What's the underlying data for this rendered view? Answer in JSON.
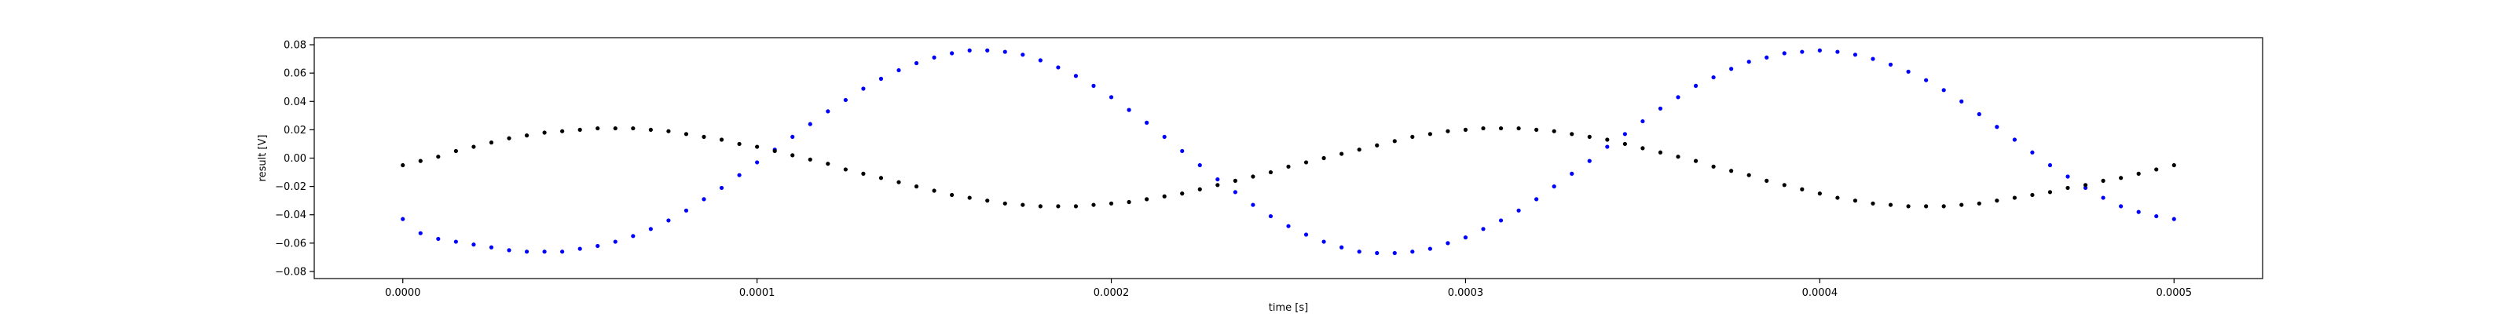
{
  "chart_data": {
    "type": "scatter",
    "title": "",
    "xlabel": "time [s]",
    "ylabel": "result [V]",
    "xlim": [
      -2.5e-05,
      0.000525
    ],
    "ylim": [
      -0.085,
      0.085
    ],
    "grid": false,
    "legend": "none",
    "xticks": [
      0,
      0.0001,
      0.0002,
      0.0003,
      0.0004,
      0.0005
    ],
    "xtick_labels": [
      "0.0000",
      "0.0001",
      "0.0002",
      "0.0003",
      "0.0004",
      "0.0005"
    ],
    "yticks": [
      -0.08,
      -0.06,
      -0.04,
      -0.02,
      0.0,
      0.02,
      0.04,
      0.06,
      0.08
    ],
    "ytick_labels": [
      "−0.08",
      "−0.06",
      "−0.04",
      "−0.02",
      "0.00",
      "0.02",
      "0.04",
      "0.06",
      "0.08"
    ],
    "series": [
      {
        "color": "#0000ff",
        "marker": "dot",
        "points": [
          [
            0.0,
            -0.043
          ],
          [
            5e-06,
            -0.053
          ],
          [
            1e-05,
            -0.057
          ],
          [
            1.5e-05,
            -0.059
          ],
          [
            2e-05,
            -0.061
          ],
          [
            2.5e-05,
            -0.063
          ],
          [
            3e-05,
            -0.065
          ],
          [
            3.5e-05,
            -0.066
          ],
          [
            4e-05,
            -0.066
          ],
          [
            4.5e-05,
            -0.066
          ],
          [
            5e-05,
            -0.064
          ],
          [
            5.5e-05,
            -0.062
          ],
          [
            6e-05,
            -0.059
          ],
          [
            6.5e-05,
            -0.055
          ],
          [
            7e-05,
            -0.05
          ],
          [
            7.5e-05,
            -0.044
          ],
          [
            8e-05,
            -0.037
          ],
          [
            8.5e-05,
            -0.029
          ],
          [
            9e-05,
            -0.021
          ],
          [
            9.5e-05,
            -0.012
          ],
          [
            0.0001,
            -0.003
          ],
          [
            0.000105,
            0.006
          ],
          [
            0.00011,
            0.015
          ],
          [
            0.000115,
            0.024
          ],
          [
            0.00012,
            0.033
          ],
          [
            0.000125,
            0.041
          ],
          [
            0.00013,
            0.049
          ],
          [
            0.000135,
            0.056
          ],
          [
            0.00014,
            0.062
          ],
          [
            0.000145,
            0.067
          ],
          [
            0.00015,
            0.071
          ],
          [
            0.000155,
            0.074
          ],
          [
            0.00016,
            0.076
          ],
          [
            0.000165,
            0.076
          ],
          [
            0.00017,
            0.075
          ],
          [
            0.000175,
            0.073
          ],
          [
            0.00018,
            0.069
          ],
          [
            0.000185,
            0.064
          ],
          [
            0.00019,
            0.058
          ],
          [
            0.000195,
            0.051
          ],
          [
            0.0002,
            0.043
          ],
          [
            0.000205,
            0.034
          ],
          [
            0.00021,
            0.025
          ],
          [
            0.000215,
            0.015
          ],
          [
            0.00022,
            0.005
          ],
          [
            0.000225,
            -0.005
          ],
          [
            0.00023,
            -0.015
          ],
          [
            0.000235,
            -0.024
          ],
          [
            0.00024,
            -0.033
          ],
          [
            0.000245,
            -0.041
          ],
          [
            0.00025,
            -0.048
          ],
          [
            0.000255,
            -0.054
          ],
          [
            0.00026,
            -0.059
          ],
          [
            0.000265,
            -0.063
          ],
          [
            0.00027,
            -0.066
          ],
          [
            0.000275,
            -0.067
          ],
          [
            0.00028,
            -0.067
          ],
          [
            0.000285,
            -0.066
          ],
          [
            0.00029,
            -0.064
          ],
          [
            0.000295,
            -0.06
          ],
          [
            0.0003,
            -0.056
          ],
          [
            0.000305,
            -0.05
          ],
          [
            0.00031,
            -0.044
          ],
          [
            0.000315,
            -0.037
          ],
          [
            0.00032,
            -0.029
          ],
          [
            0.000325,
            -0.02
          ],
          [
            0.00033,
            -0.011
          ],
          [
            0.000335,
            -0.002
          ],
          [
            0.00034,
            0.008
          ],
          [
            0.000345,
            0.017
          ],
          [
            0.00035,
            0.026
          ],
          [
            0.000355,
            0.035
          ],
          [
            0.00036,
            0.043
          ],
          [
            0.000365,
            0.051
          ],
          [
            0.00037,
            0.057
          ],
          [
            0.000375,
            0.063
          ],
          [
            0.00038,
            0.068
          ],
          [
            0.000385,
            0.071
          ],
          [
            0.00039,
            0.074
          ],
          [
            0.000395,
            0.075
          ],
          [
            0.0004,
            0.076
          ],
          [
            0.000405,
            0.075
          ],
          [
            0.00041,
            0.073
          ],
          [
            0.000415,
            0.07
          ],
          [
            0.00042,
            0.066
          ],
          [
            0.000425,
            0.061
          ],
          [
            0.00043,
            0.055
          ],
          [
            0.000435,
            0.048
          ],
          [
            0.00044,
            0.04
          ],
          [
            0.000445,
            0.031
          ],
          [
            0.00045,
            0.022
          ],
          [
            0.000455,
            0.013
          ],
          [
            0.00046,
            0.004
          ],
          [
            0.000465,
            -0.005
          ],
          [
            0.00047,
            -0.013
          ],
          [
            0.000475,
            -0.021
          ],
          [
            0.00048,
            -0.028
          ],
          [
            0.000485,
            -0.034
          ],
          [
            0.00049,
            -0.038
          ],
          [
            0.000495,
            -0.041
          ],
          [
            0.0005,
            -0.043
          ]
        ]
      },
      {
        "color": "#000000",
        "marker": "dot",
        "points": [
          [
            0.0,
            -0.005
          ],
          [
            5e-06,
            -0.002
          ],
          [
            1e-05,
            0.001
          ],
          [
            1.5e-05,
            0.005
          ],
          [
            2e-05,
            0.008
          ],
          [
            2.5e-05,
            0.011
          ],
          [
            3e-05,
            0.014
          ],
          [
            3.5e-05,
            0.016
          ],
          [
            4e-05,
            0.018
          ],
          [
            4.5e-05,
            0.019
          ],
          [
            5e-05,
            0.02
          ],
          [
            5.5e-05,
            0.021
          ],
          [
            6e-05,
            0.021
          ],
          [
            6.5e-05,
            0.021
          ],
          [
            7e-05,
            0.02
          ],
          [
            7.5e-05,
            0.019
          ],
          [
            8e-05,
            0.017
          ],
          [
            8.5e-05,
            0.015
          ],
          [
            9e-05,
            0.013
          ],
          [
            9.5e-05,
            0.01
          ],
          [
            0.0001,
            0.008
          ],
          [
            0.000105,
            0.005
          ],
          [
            0.00011,
            0.002
          ],
          [
            0.000115,
            -0.001
          ],
          [
            0.00012,
            -0.004
          ],
          [
            0.000125,
            -0.008
          ],
          [
            0.00013,
            -0.011
          ],
          [
            0.000135,
            -0.014
          ],
          [
            0.00014,
            -0.017
          ],
          [
            0.000145,
            -0.02
          ],
          [
            0.00015,
            -0.023
          ],
          [
            0.000155,
            -0.026
          ],
          [
            0.00016,
            -0.028
          ],
          [
            0.000165,
            -0.03
          ],
          [
            0.00017,
            -0.032
          ],
          [
            0.000175,
            -0.033
          ],
          [
            0.00018,
            -0.034
          ],
          [
            0.000185,
            -0.034
          ],
          [
            0.00019,
            -0.034
          ],
          [
            0.000195,
            -0.033
          ],
          [
            0.0002,
            -0.032
          ],
          [
            0.000205,
            -0.031
          ],
          [
            0.00021,
            -0.029
          ],
          [
            0.000215,
            -0.027
          ],
          [
            0.00022,
            -0.025
          ],
          [
            0.000225,
            -0.022
          ],
          [
            0.00023,
            -0.019
          ],
          [
            0.000235,
            -0.016
          ],
          [
            0.00024,
            -0.013
          ],
          [
            0.000245,
            -0.01
          ],
          [
            0.00025,
            -0.006
          ],
          [
            0.000255,
            -0.003
          ],
          [
            0.00026,
            0.0
          ],
          [
            0.000265,
            0.003
          ],
          [
            0.00027,
            0.006
          ],
          [
            0.000275,
            0.009
          ],
          [
            0.00028,
            0.012
          ],
          [
            0.000285,
            0.015
          ],
          [
            0.00029,
            0.017
          ],
          [
            0.000295,
            0.019
          ],
          [
            0.0003,
            0.02
          ],
          [
            0.000305,
            0.021
          ],
          [
            0.00031,
            0.021
          ],
          [
            0.000315,
            0.021
          ],
          [
            0.00032,
            0.02
          ],
          [
            0.000325,
            0.019
          ],
          [
            0.00033,
            0.017
          ],
          [
            0.000335,
            0.015
          ],
          [
            0.00034,
            0.013
          ],
          [
            0.000345,
            0.01
          ],
          [
            0.00035,
            0.007
          ],
          [
            0.000355,
            0.004
          ],
          [
            0.00036,
            0.001
          ],
          [
            0.000365,
            -0.002
          ],
          [
            0.00037,
            -0.006
          ],
          [
            0.000375,
            -0.009
          ],
          [
            0.00038,
            -0.012
          ],
          [
            0.000385,
            -0.016
          ],
          [
            0.00039,
            -0.019
          ],
          [
            0.000395,
            -0.022
          ],
          [
            0.0004,
            -0.025
          ],
          [
            0.000405,
            -0.028
          ],
          [
            0.00041,
            -0.03
          ],
          [
            0.000415,
            -0.032
          ],
          [
            0.00042,
            -0.033
          ],
          [
            0.000425,
            -0.034
          ],
          [
            0.00043,
            -0.034
          ],
          [
            0.000435,
            -0.034
          ],
          [
            0.00044,
            -0.033
          ],
          [
            0.000445,
            -0.032
          ],
          [
            0.00045,
            -0.03
          ],
          [
            0.000455,
            -0.028
          ],
          [
            0.00046,
            -0.026
          ],
          [
            0.000465,
            -0.024
          ],
          [
            0.00047,
            -0.021
          ],
          [
            0.000475,
            -0.019
          ],
          [
            0.00048,
            -0.016
          ],
          [
            0.000485,
            -0.014
          ],
          [
            0.00049,
            -0.011
          ],
          [
            0.000495,
            -0.008
          ],
          [
            0.0005,
            -0.005
          ]
        ]
      }
    ]
  }
}
